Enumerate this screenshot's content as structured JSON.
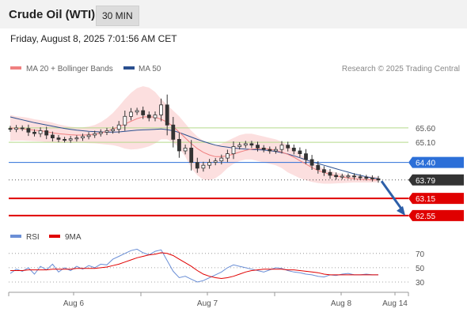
{
  "header": {
    "title": "Crude Oil (WTI)",
    "interval": "30 MIN"
  },
  "timestamp": "Friday, August 8, 2025 7:01:56 AM CET",
  "legend": {
    "ma20": "MA 20 + Bollinger Bands",
    "ma50": "MA 50",
    "credit": "Research © 2025 Trading Central"
  },
  "rsi_legend": {
    "rsi": "RSI",
    "ma": "9MA"
  },
  "colors": {
    "ma20": "#f08080",
    "ma50": "#2a4f8f",
    "band": "#fcdcdc",
    "resistance": "#b5d98a",
    "pivot": "#2c6fd8",
    "support": "#e00000",
    "arrow": "#2d5fa8",
    "candle": "#333333",
    "rsi": "#6b8fd6",
    "rsi_ma": "#e00000"
  },
  "chart_data": [
    {
      "type": "line",
      "title": "",
      "x_ticks": [
        "Aug 6",
        "Aug 7",
        "Aug 8",
        "Aug 14"
      ],
      "ylim": [
        62.3,
        67.3
      ],
      "levels": [
        {
          "name": "resistance",
          "value": 65.6,
          "label": "65.60"
        },
        {
          "name": "resistance",
          "value": 65.1,
          "label": "65.10"
        },
        {
          "name": "pivot",
          "value": 64.4,
          "label": "64.40"
        },
        {
          "name": "last",
          "value": 63.79,
          "label": "63.79"
        },
        {
          "name": "support",
          "value": 63.15,
          "label": "63.15"
        },
        {
          "name": "support",
          "value": 62.55,
          "label": "62.55"
        }
      ],
      "projection": {
        "from": 63.75,
        "to": 62.55
      },
      "series": [
        {
          "name": "Price",
          "values": [
            65.55,
            65.6,
            65.58,
            65.45,
            65.4,
            65.5,
            65.35,
            65.25,
            65.2,
            65.18,
            65.22,
            65.25,
            65.3,
            65.35,
            65.4,
            65.45,
            65.5,
            65.55,
            65.7,
            66.0,
            66.15,
            66.2,
            66.05,
            65.95,
            66.05,
            66.4,
            65.7,
            65.2,
            64.8,
            64.9,
            64.4,
            64.2,
            64.3,
            64.4,
            64.45,
            64.55,
            64.7,
            64.95,
            65.0,
            65.05,
            65.0,
            64.9,
            64.85,
            64.8,
            64.85,
            65.0,
            64.9,
            64.8,
            64.7,
            64.5,
            64.3,
            64.15,
            64.05,
            63.95,
            63.9,
            63.92,
            63.93,
            63.9,
            63.88,
            63.86,
            63.83,
            63.79
          ]
        },
        {
          "name": "MA 20",
          "values": [
            65.6,
            65.58,
            65.57,
            65.55,
            65.52,
            65.5,
            65.47,
            65.43,
            65.4,
            65.38,
            65.36,
            65.35,
            65.35,
            65.36,
            65.38,
            65.42,
            65.48,
            65.56,
            65.64,
            65.73,
            65.83,
            65.92,
            65.98,
            65.99,
            65.97,
            65.9,
            65.8,
            65.65,
            65.45,
            65.25,
            65.05,
            64.88,
            64.75,
            64.66,
            64.6,
            64.6,
            64.63,
            64.69,
            64.76,
            64.82,
            64.86,
            64.88,
            64.88,
            64.86,
            64.82,
            64.76,
            64.68,
            64.58,
            64.46,
            64.34,
            64.22,
            64.12,
            64.05,
            63.98,
            63.93,
            63.89,
            63.86,
            63.83,
            63.81,
            63.8,
            63.79,
            63.79
          ]
        },
        {
          "name": "MA 50",
          "values": [
            65.98,
            65.93,
            65.88,
            65.83,
            65.78,
            65.74,
            65.7,
            65.66,
            65.62,
            65.58,
            65.55,
            65.52,
            65.5,
            65.48,
            65.47,
            65.46,
            65.45,
            65.45,
            65.46,
            65.48,
            65.5,
            65.52,
            65.53,
            65.54,
            65.55,
            65.56,
            65.54,
            65.5,
            65.44,
            65.36,
            65.28,
            65.2,
            65.13,
            65.06,
            65.0,
            64.96,
            64.93,
            64.9,
            64.88,
            64.86,
            64.85,
            64.84,
            64.83,
            64.81,
            64.78,
            64.74,
            64.69,
            64.63,
            64.56,
            64.49,
            64.42,
            64.36,
            64.3,
            64.24,
            64.18,
            64.12,
            64.06,
            64.0,
            63.95,
            63.9,
            63.86,
            63.83
          ]
        },
        {
          "name": "Upper band",
          "values": [
            66.05,
            66.0,
            65.98,
            65.95,
            65.9,
            65.87,
            65.83,
            65.78,
            65.72,
            65.68,
            65.64,
            65.62,
            65.62,
            65.65,
            65.7,
            65.8,
            65.94,
            66.12,
            66.35,
            66.6,
            66.82,
            66.98,
            67.05,
            67.0,
            66.85,
            66.6,
            66.4,
            66.2,
            66.0,
            65.75,
            65.5,
            65.3,
            65.15,
            65.05,
            65.0,
            65.05,
            65.15,
            65.25,
            65.35,
            65.4,
            65.4,
            65.35,
            65.3,
            65.25,
            65.2,
            65.12,
            65.0,
            64.85,
            64.7,
            64.55,
            64.4,
            64.28,
            64.18,
            64.1,
            64.05,
            64.0,
            63.97,
            63.95,
            63.93,
            63.92,
            63.91,
            63.9
          ]
        },
        {
          "name": "Lower band",
          "values": [
            65.15,
            65.16,
            65.16,
            65.15,
            65.14,
            65.13,
            65.11,
            65.08,
            65.08,
            65.08,
            65.08,
            65.08,
            65.08,
            65.07,
            65.06,
            65.04,
            65.02,
            65.0,
            64.95,
            64.88,
            64.85,
            64.86,
            64.9,
            64.96,
            65.06,
            65.2,
            65.2,
            65.1,
            64.9,
            64.6,
            64.2,
            63.95,
            63.8,
            63.78,
            63.85,
            64.0,
            64.2,
            64.35,
            64.45,
            64.5,
            64.5,
            64.45,
            64.4,
            64.35,
            64.3,
            64.2,
            64.05,
            63.95,
            63.85,
            63.78,
            63.72,
            63.68,
            63.66,
            63.66,
            63.67,
            63.68,
            63.69,
            63.7,
            63.7,
            63.7,
            63.7,
            63.71
          ]
        }
      ]
    },
    {
      "type": "line",
      "title": "",
      "ylim": [
        20,
        82
      ],
      "y_ticks": [
        70,
        50,
        30
      ],
      "series": [
        {
          "name": "RSI",
          "values": [
            42,
            48,
            45,
            50,
            41,
            52,
            47,
            55,
            44,
            50,
            46,
            52,
            48,
            53,
            50,
            55,
            54,
            62,
            66,
            70,
            74,
            76,
            71,
            68,
            73,
            75,
            60,
            45,
            36,
            38,
            34,
            30,
            32,
            36,
            40,
            44,
            50,
            54,
            52,
            50,
            48,
            46,
            44,
            47,
            50,
            49,
            46,
            44,
            43,
            41,
            40,
            38,
            37,
            40,
            39,
            41,
            42,
            40,
            40,
            41,
            40,
            40
          ]
        },
        {
          "name": "9MA",
          "values": [
            46,
            46,
            46,
            47,
            47,
            47,
            47,
            48,
            48,
            48,
            48,
            49,
            49,
            49,
            49,
            50,
            51,
            53,
            55,
            58,
            61,
            64,
            66,
            68,
            69,
            71,
            70,
            67,
            62,
            57,
            52,
            46,
            41,
            38,
            36,
            35,
            36,
            38,
            41,
            44,
            46,
            47,
            48,
            48,
            48,
            48,
            47,
            47,
            46,
            45,
            44,
            43,
            41,
            40,
            40,
            40,
            40,
            40,
            40,
            40,
            40,
            40
          ]
        }
      ]
    }
  ]
}
